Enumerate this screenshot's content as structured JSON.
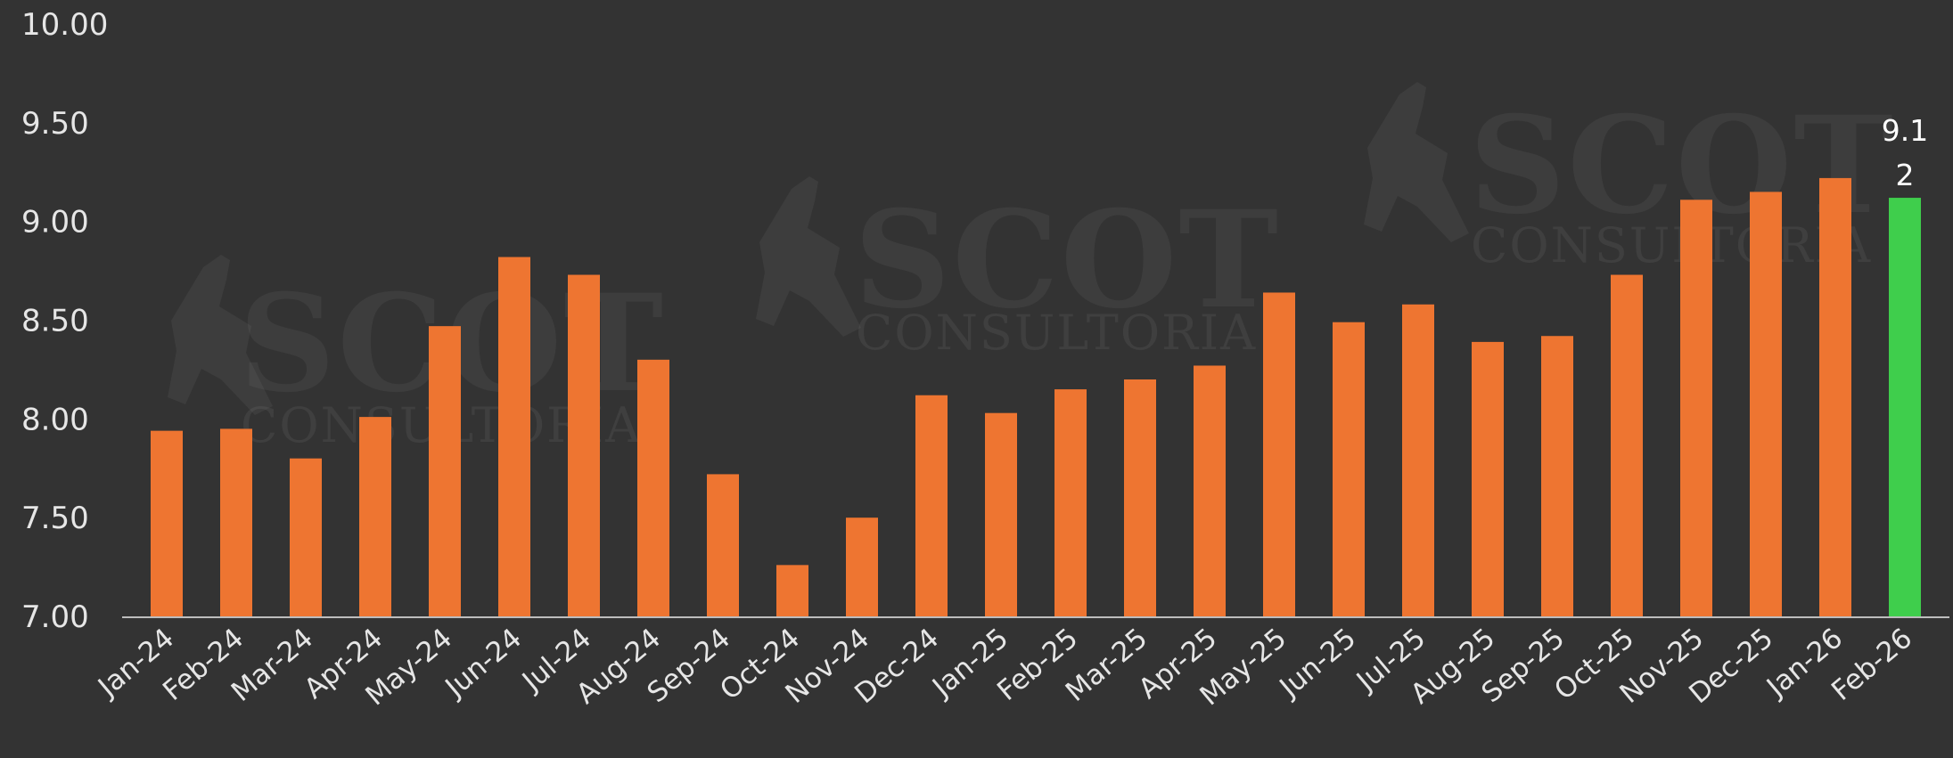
{
  "watermark": {
    "brand": "SCOT",
    "subtitle": "CONSULTORIA"
  },
  "chart_data": {
    "type": "bar",
    "title": "",
    "xlabel": "",
    "ylabel": "",
    "ylim": [
      7.0,
      10.0
    ],
    "yticks": [
      "7.00",
      "7.50",
      "8.00",
      "8.50",
      "9.00",
      "9.50",
      "10.00"
    ],
    "grid": false,
    "categories": [
      "Jan-24",
      "Feb-24",
      "Mar-24",
      "Apr-24",
      "May-24",
      "Jun-24",
      "Jul-24",
      "Aug-24",
      "Sep-24",
      "Oct-24",
      "Nov-24",
      "Dec-24",
      "Jan-25",
      "Feb-25",
      "Mar-25",
      "Apr-25",
      "May-25",
      "Jun-25",
      "Jul-25",
      "Aug-25",
      "Sep-25",
      "Oct-25",
      "Nov-25",
      "Dec-25",
      "Jan-26",
      "Feb-26"
    ],
    "values": [
      7.94,
      7.95,
      7.8,
      8.01,
      8.47,
      8.82,
      8.73,
      8.3,
      7.72,
      7.26,
      7.5,
      8.12,
      8.03,
      8.15,
      8.2,
      8.27,
      8.64,
      8.49,
      8.58,
      8.39,
      8.42,
      8.73,
      9.11,
      9.15,
      9.22,
      9.12
    ],
    "colors": {
      "bar": "#ee7531",
      "highlight": "#3fce4c",
      "axis": "#bdbdbd",
      "background": "#333333"
    },
    "highlight_index": 25,
    "highlight_label_lines": [
      "9.1",
      "2"
    ]
  }
}
